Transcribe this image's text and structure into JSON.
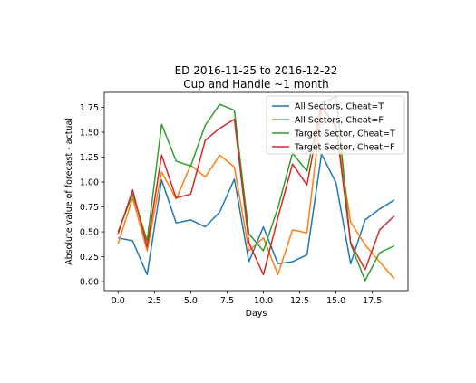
{
  "chart_data": {
    "type": "line",
    "title": "ED 2016-11-25 to 2016-12-22",
    "subtitle": "Cup and Handle ~1 month",
    "xlabel": "Days",
    "ylabel": "Absolute value of forecast - actual",
    "xlim": [
      -0.95,
      19.95
    ],
    "ylim": [
      -0.09,
      1.9
    ],
    "xticks": [
      0.0,
      2.5,
      5.0,
      7.5,
      10.0,
      12.5,
      15.0,
      17.5
    ],
    "xtick_labels": [
      "0.0",
      "2.5",
      "5.0",
      "7.5",
      "10.0",
      "12.5",
      "15.0",
      "17.5"
    ],
    "yticks": [
      0.0,
      0.25,
      0.5,
      0.75,
      1.0,
      1.25,
      1.5,
      1.75
    ],
    "ytick_labels": [
      "0.00",
      "0.25",
      "0.50",
      "0.75",
      "1.00",
      "1.25",
      "1.50",
      "1.75"
    ],
    "grid": false,
    "legend_position": "top-right",
    "x": [
      0,
      1,
      2,
      3,
      4,
      5,
      6,
      7,
      8,
      9,
      10,
      11,
      12,
      13,
      14,
      15,
      16,
      17,
      18,
      19
    ],
    "series": [
      {
        "name": "All Sectors, Cheat=T",
        "color": "#1f77b4",
        "values": [
          0.44,
          0.41,
          0.07,
          1.02,
          0.59,
          0.62,
          0.55,
          0.7,
          1.03,
          0.2,
          0.55,
          0.18,
          0.2,
          0.27,
          1.28,
          0.99,
          0.18,
          0.62,
          0.73,
          0.82
        ]
      },
      {
        "name": "All Sectors, Cheat=F",
        "color": "#ff7f0e",
        "values": [
          0.38,
          0.84,
          0.31,
          1.1,
          0.83,
          1.17,
          1.05,
          1.27,
          1.15,
          0.31,
          0.44,
          0.07,
          0.52,
          0.49,
          1.74,
          1.55,
          0.6,
          0.37,
          0.2,
          0.03
        ]
      },
      {
        "name": "Target Sector, Cheat=T",
        "color": "#2ca02c",
        "values": [
          0.5,
          0.88,
          0.41,
          1.58,
          1.21,
          1.16,
          1.57,
          1.78,
          1.72,
          0.48,
          0.31,
          0.74,
          1.29,
          1.11,
          1.79,
          1.86,
          0.38,
          0.01,
          0.29,
          0.36
        ]
      },
      {
        "name": "Target Sector, Cheat=F",
        "color": "#d62728",
        "values": [
          0.48,
          0.92,
          0.35,
          1.27,
          0.84,
          0.88,
          1.42,
          1.54,
          1.63,
          0.39,
          0.07,
          0.64,
          1.18,
          0.97,
          1.76,
          1.56,
          0.39,
          0.12,
          0.52,
          0.66
        ]
      }
    ]
  }
}
